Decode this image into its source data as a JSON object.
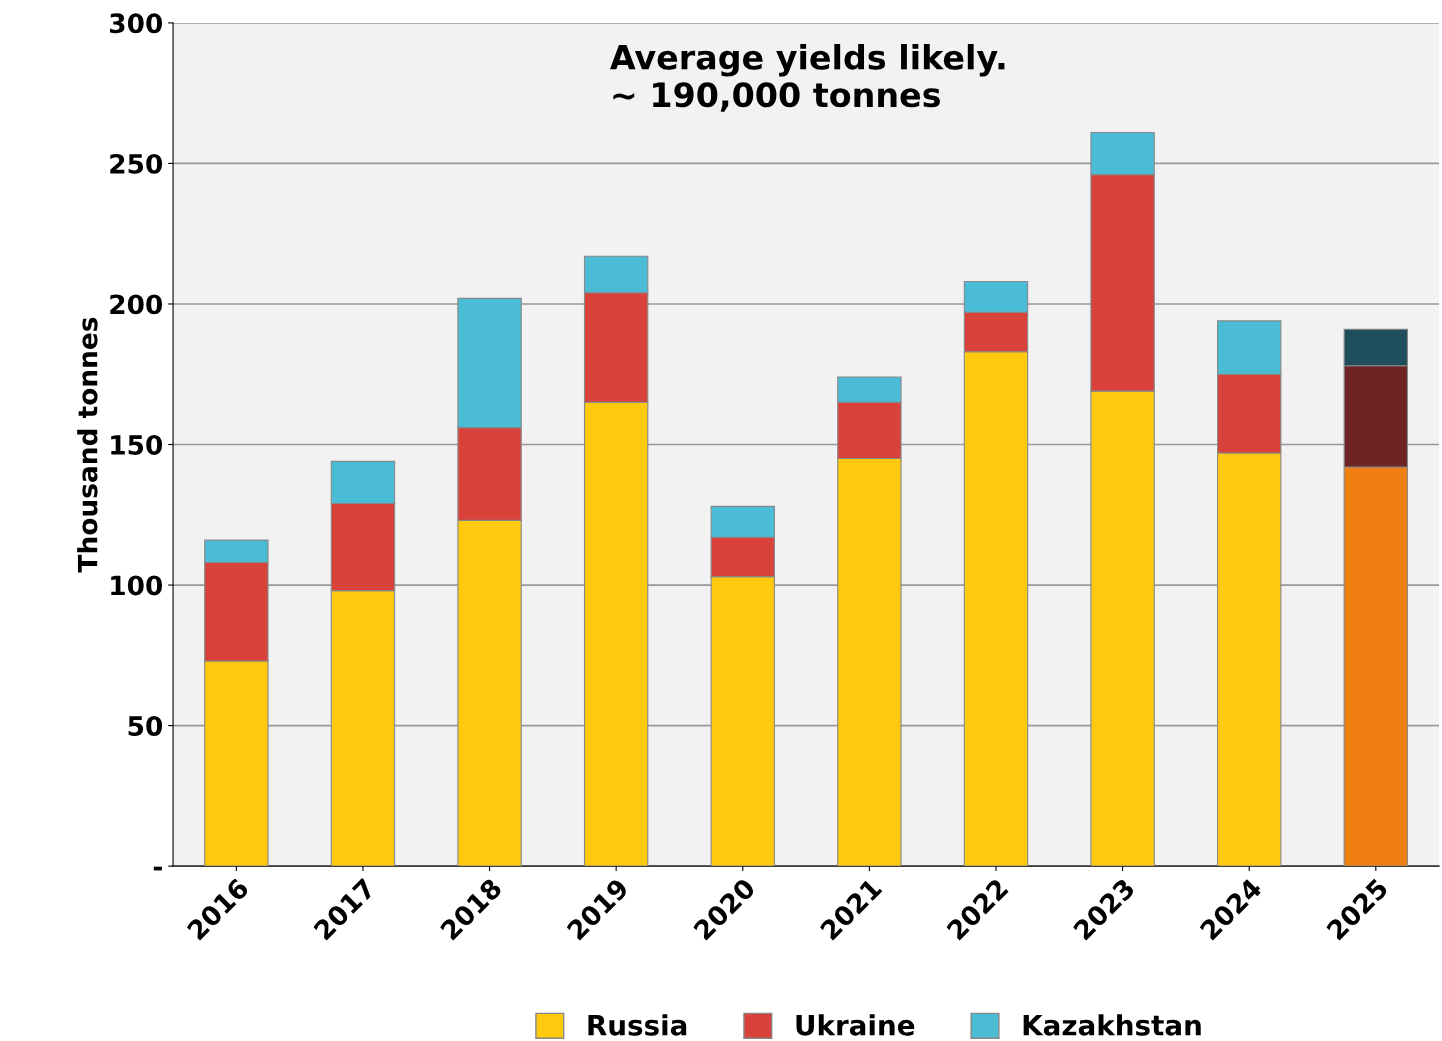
{
  "chart_data": {
    "type": "bar",
    "stacked": true,
    "ylabel": "Thousand tonnes",
    "categories": [
      "2016",
      "2017",
      "2018",
      "2019",
      "2020",
      "2021",
      "2022",
      "2023",
      "2024",
      "2025"
    ],
    "series": [
      {
        "name": "Russia",
        "color": "#ffc90e",
        "colors": [
          "#ffc90e",
          "#ffc90e",
          "#ffc90e",
          "#ffc90e",
          "#ffc90e",
          "#ffc90e",
          "#ffc90e",
          "#ffc90e",
          "#ffc90e",
          "#f07f12"
        ],
        "values": [
          73,
          98,
          123,
          165,
          103,
          145,
          183,
          169,
          147,
          142
        ]
      },
      {
        "name": "Ukraine",
        "color": "#d9413b",
        "colors": [
          "#d9413b",
          "#d9413b",
          "#d9413b",
          "#d9413b",
          "#d9413b",
          "#d9413b",
          "#d9413b",
          "#d9413b",
          "#d9413b",
          "#6e2424"
        ],
        "values": [
          35,
          31,
          33,
          39,
          14,
          20,
          14,
          77,
          28,
          36
        ]
      },
      {
        "name": "Kazakhstan",
        "color": "#4bbcd6",
        "colors": [
          "#4bbcd6",
          "#4bbcd6",
          "#4bbcd6",
          "#4bbcd6",
          "#4bbcd6",
          "#4bbcd6",
          "#4bbcd6",
          "#4bbcd6",
          "#4bbcd6",
          "#1f4f5c"
        ],
        "values": [
          8,
          15,
          46,
          13,
          11,
          9,
          11,
          15,
          19,
          13
        ]
      }
    ],
    "ylim": [
      0,
      300
    ],
    "yticks": [
      {
        "value": 0,
        "label": "-"
      },
      50,
      100,
      150,
      200,
      250,
      300
    ],
    "grid": "y",
    "legend": "bottom",
    "annotations": [
      "Average yields likely.\n~ 190,000 tonnes"
    ]
  }
}
